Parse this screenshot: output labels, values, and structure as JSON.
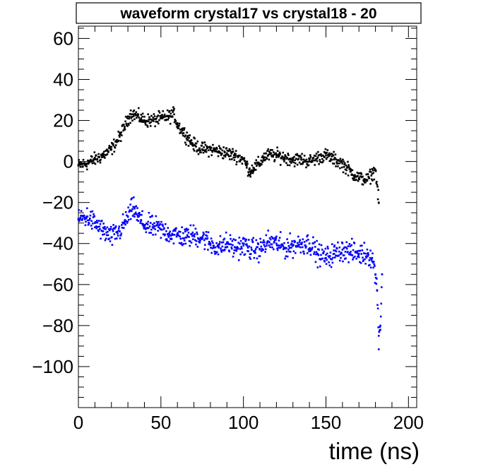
{
  "chart_data": {
    "type": "scatter",
    "title": "waveform crystal17 vs crystal18 - 20",
    "xlabel": "time (ns)",
    "ylabel": "",
    "xlim": [
      0,
      205
    ],
    "ylim": [
      -120,
      66
    ],
    "x_ticks": [
      0,
      50,
      100,
      150,
      200
    ],
    "x_tick_labels": [
      "0",
      "50",
      "100",
      "150",
      "200"
    ],
    "y_ticks": [
      60,
      40,
      20,
      0,
      -20,
      -40,
      -60,
      -80,
      -100
    ],
    "y_tick_labels": [
      "60",
      "40",
      "20",
      "0",
      "−20",
      "−40",
      "−60",
      "−80",
      "−100"
    ],
    "grid": false,
    "legend": "none",
    "series": [
      {
        "color": "#000000",
        "x": [
          0,
          5,
          10,
          15,
          20,
          25,
          28,
          30,
          32,
          34,
          36,
          38,
          40,
          45,
          50,
          55,
          58,
          60,
          63,
          66,
          70,
          75,
          80,
          85,
          90,
          95,
          100,
          102,
          104,
          106,
          108,
          110,
          112,
          115,
          120,
          125,
          130,
          135,
          140,
          145,
          150,
          155,
          160,
          165,
          170,
          175,
          178,
          180,
          182
        ],
        "y": [
          -2,
          -1,
          1,
          3,
          6,
          12,
          17,
          21,
          23,
          23,
          22,
          21,
          20,
          20,
          21,
          22,
          23,
          18,
          15,
          12,
          8,
          6,
          6,
          5,
          4,
          3,
          1,
          -2,
          -5,
          -3,
          -2,
          -1,
          2,
          3,
          3,
          2,
          1,
          1,
          0,
          2,
          3,
          1,
          -1,
          -5,
          -8,
          -9,
          -6,
          -4,
          -20
        ]
      },
      {
        "color": "#0000ff",
        "x": [
          0,
          5,
          10,
          15,
          20,
          25,
          28,
          30,
          32,
          34,
          36,
          38,
          40,
          45,
          50,
          55,
          60,
          65,
          70,
          75,
          80,
          85,
          90,
          95,
          100,
          105,
          110,
          115,
          120,
          125,
          130,
          135,
          140,
          145,
          150,
          155,
          160,
          165,
          170,
          175,
          178,
          180,
          181,
          182,
          183,
          184
        ],
        "y": [
          -28,
          -27,
          -30,
          -34,
          -37,
          -34,
          -30,
          -27,
          -24,
          -23,
          -27,
          -29,
          -31,
          -32,
          -33,
          -35,
          -36,
          -37,
          -36,
          -37,
          -40,
          -42,
          -40,
          -42,
          -41,
          -43,
          -43,
          -39,
          -40,
          -42,
          -41,
          -40,
          -40,
          -45,
          -47,
          -45,
          -43,
          -44,
          -45,
          -45,
          -47,
          -55,
          -63,
          -85,
          -80,
          -55
        ]
      }
    ]
  }
}
